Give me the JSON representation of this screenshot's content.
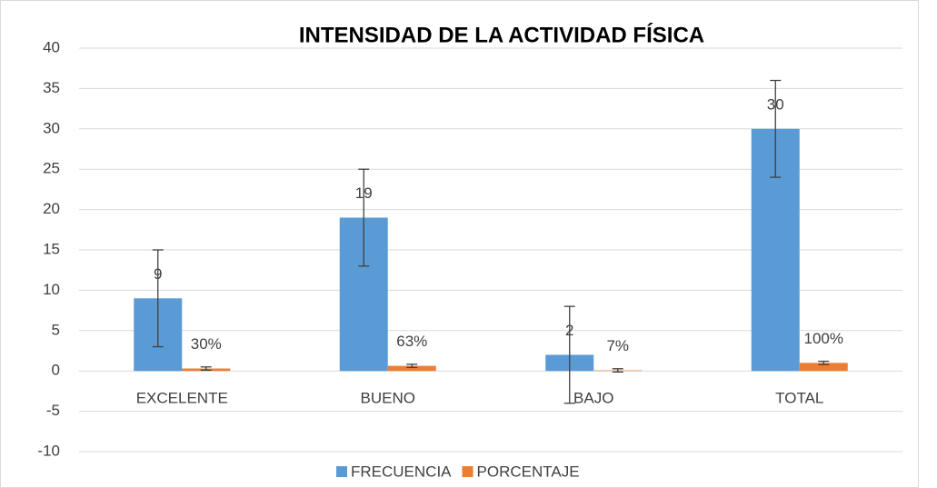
{
  "chart_data": {
    "type": "bar",
    "title": "INTENSIDAD DE LA ACTIVIDAD FÍSICA",
    "categories": [
      "EXCELENTE",
      "BUENO",
      "BAJO",
      "TOTAL"
    ],
    "series": [
      {
        "name": "FRECUENCIA",
        "color": "#5b9bd5",
        "values": [
          9,
          19,
          2,
          30
        ],
        "errors": [
          6,
          6,
          6,
          6
        ]
      },
      {
        "name": "PORCENTAJE",
        "color": "#ed7d31",
        "values": [
          0.3,
          0.63,
          0.07,
          1.0
        ],
        "value_labels": [
          "30%",
          "63%",
          "7%",
          "100%"
        ],
        "errors": [
          0.2,
          0.2,
          0.2,
          0.2
        ]
      }
    ],
    "ylim": [
      -10,
      40
    ],
    "yticks": [
      -10,
      -5,
      0,
      5,
      10,
      15,
      20,
      25,
      30,
      35,
      40
    ],
    "grid": true,
    "legend": "bottom"
  }
}
